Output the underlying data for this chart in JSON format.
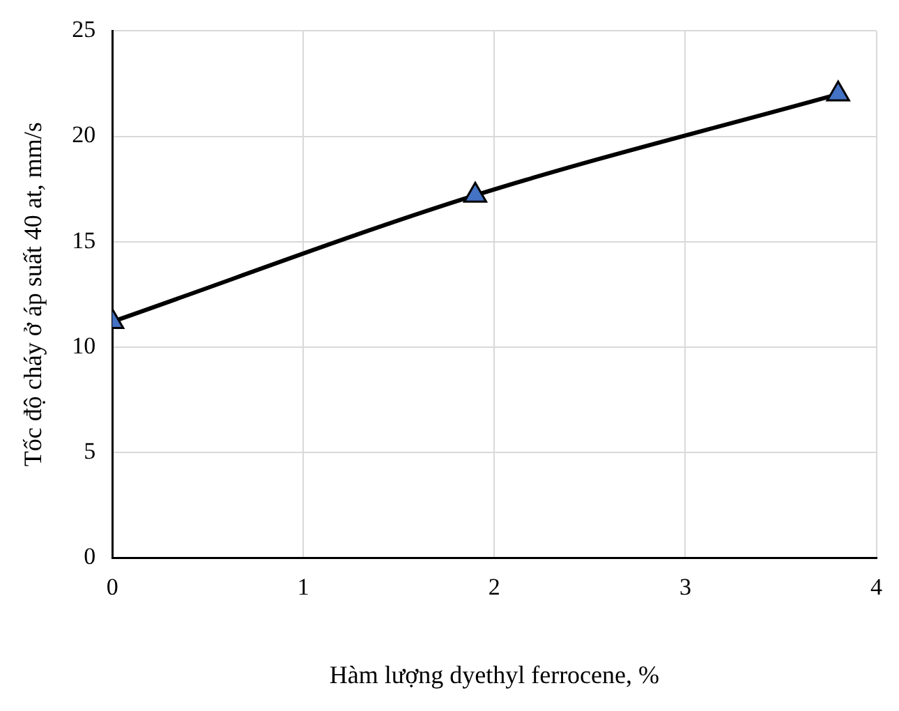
{
  "chart_data": {
    "type": "line",
    "xlabel": "Hàm lượng dyethyl ferrocene, %",
    "ylabel": "Tốc độ cháy ở áp suất 40 at, mm/s",
    "x": [
      0,
      1.9,
      3.8
    ],
    "series": [
      {
        "color": "#000000",
        "values": [
          11.2,
          17.2,
          22
        ]
      }
    ],
    "xlim": [
      0,
      4
    ],
    "xticks": [
      0,
      1,
      2,
      3,
      4
    ],
    "ylim": [
      0,
      25
    ],
    "yticks": [
      0,
      5,
      10,
      15,
      20,
      25
    ],
    "grid": true,
    "legend": false,
    "marker": "triangle",
    "line_style": "solid"
  }
}
